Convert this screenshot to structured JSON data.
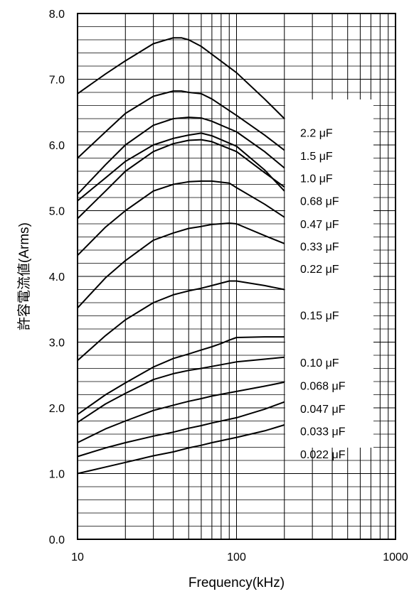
{
  "chart_data": {
    "type": "line",
    "title": "",
    "xlabel": "Frequency(kHz)",
    "ylabel": "許容電流値(Arms)",
    "x_scale": "log",
    "xlim": [
      10,
      1000
    ],
    "ylim": [
      0,
      8
    ],
    "x_ticks": [
      {
        "v": 10,
        "t": "10"
      },
      {
        "v": 100,
        "t": "100"
      },
      {
        "v": 1000,
        "t": "1000"
      }
    ],
    "y_ticks": [
      {
        "v": 0,
        "t": "0.0"
      },
      {
        "v": 1,
        "t": "1.0"
      },
      {
        "v": 2,
        "t": "2.0"
      },
      {
        "v": 3,
        "t": "3.0"
      },
      {
        "v": 4,
        "t": "4.0"
      },
      {
        "v": 5,
        "t": "5.0"
      },
      {
        "v": 6,
        "t": "6.0"
      },
      {
        "v": 7,
        "t": "7.0"
      },
      {
        "v": 8,
        "t": "8.0"
      }
    ],
    "grid": true,
    "legend": "inline labels at right end of curves",
    "series": [
      {
        "name": "2.2 μF",
        "x": [
          10,
          15,
          20,
          30,
          40,
          45,
          50,
          60,
          70,
          100,
          150,
          200
        ],
        "y": [
          6.78,
          7.08,
          7.28,
          7.54,
          7.63,
          7.63,
          7.6,
          7.5,
          7.38,
          7.1,
          6.7,
          6.4
        ]
      },
      {
        "name": "1.5 μF",
        "x": [
          10,
          15,
          20,
          30,
          40,
          45,
          50,
          60,
          70,
          100,
          150,
          200
        ],
        "y": [
          5.8,
          6.2,
          6.48,
          6.74,
          6.82,
          6.82,
          6.8,
          6.78,
          6.7,
          6.45,
          6.15,
          5.92
        ]
      },
      {
        "name": "1.0 μF",
        "x": [
          10,
          15,
          20,
          30,
          40,
          50,
          60,
          70,
          100,
          150,
          200
        ],
        "y": [
          5.25,
          5.7,
          6.0,
          6.3,
          6.4,
          6.42,
          6.41,
          6.36,
          6.2,
          5.9,
          5.65
        ]
      },
      {
        "name": "0.68 μF",
        "x": [
          10,
          15,
          20,
          30,
          40,
          50,
          60,
          70,
          100,
          150,
          200
        ],
        "y": [
          5.15,
          5.5,
          5.75,
          6.0,
          6.1,
          6.15,
          6.18,
          6.14,
          5.98,
          5.62,
          5.3
        ]
      },
      {
        "name": "0.47 μF",
        "x": [
          10,
          15,
          20,
          30,
          40,
          50,
          60,
          70,
          100,
          150,
          200
        ],
        "y": [
          4.88,
          5.3,
          5.6,
          5.9,
          6.02,
          6.07,
          6.08,
          6.05,
          5.9,
          5.58,
          5.36
        ]
      },
      {
        "name": "0.33 μF",
        "x": [
          10,
          15,
          20,
          30,
          40,
          50,
          60,
          70,
          90,
          100,
          150,
          200
        ],
        "y": [
          4.32,
          4.75,
          5.0,
          5.3,
          5.4,
          5.44,
          5.45,
          5.45,
          5.42,
          5.35,
          5.1,
          4.9
        ]
      },
      {
        "name": "0.22 μF",
        "x": [
          10,
          15,
          20,
          30,
          40,
          50,
          60,
          70,
          90,
          100,
          150,
          200
        ],
        "y": [
          3.52,
          3.98,
          4.24,
          4.55,
          4.66,
          4.73,
          4.76,
          4.79,
          4.81,
          4.8,
          4.62,
          4.5
        ]
      },
      {
        "name": "0.15 μF",
        "x": [
          10,
          15,
          20,
          30,
          40,
          50,
          60,
          70,
          90,
          100,
          150,
          200
        ],
        "y": [
          2.72,
          3.1,
          3.34,
          3.6,
          3.72,
          3.78,
          3.82,
          3.86,
          3.93,
          3.93,
          3.86,
          3.8
        ]
      },
      {
        "name": "0.10 μF",
        "x": [
          10,
          15,
          20,
          30,
          40,
          50,
          60,
          70,
          80,
          90,
          100,
          150,
          200
        ],
        "y": [
          1.9,
          2.2,
          2.38,
          2.62,
          2.75,
          2.82,
          2.88,
          2.93,
          2.98,
          3.03,
          3.07,
          3.08,
          3.08
        ]
      },
      {
        "name": "0.068 μF",
        "x": [
          10,
          15,
          20,
          30,
          40,
          50,
          60,
          70,
          100,
          150,
          200
        ],
        "y": [
          1.78,
          2.06,
          2.22,
          2.43,
          2.52,
          2.57,
          2.6,
          2.63,
          2.7,
          2.74,
          2.77
        ]
      },
      {
        "name": "0.047 μF",
        "x": [
          10,
          15,
          20,
          30,
          40,
          50,
          60,
          70,
          100,
          150,
          200
        ],
        "y": [
          1.47,
          1.68,
          1.8,
          1.96,
          2.04,
          2.1,
          2.14,
          2.18,
          2.25,
          2.33,
          2.39
        ]
      },
      {
        "name": "0.033 μF",
        "x": [
          10,
          15,
          20,
          30,
          40,
          50,
          60,
          70,
          100,
          150,
          200
        ],
        "y": [
          1.26,
          1.39,
          1.47,
          1.57,
          1.63,
          1.69,
          1.73,
          1.77,
          1.85,
          1.98,
          2.09
        ]
      },
      {
        "name": "0.022 μF",
        "x": [
          10,
          15,
          20,
          30,
          40,
          50,
          60,
          70,
          100,
          150,
          200
        ],
        "y": [
          1.0,
          1.1,
          1.17,
          1.27,
          1.33,
          1.39,
          1.43,
          1.47,
          1.55,
          1.65,
          1.74
        ]
      }
    ],
    "label_y": [
      6.19,
      5.84,
      5.5,
      5.15,
      4.8,
      4.46,
      4.12,
      3.41,
      2.69,
      2.34,
      1.99,
      1.65,
      1.3
    ]
  }
}
